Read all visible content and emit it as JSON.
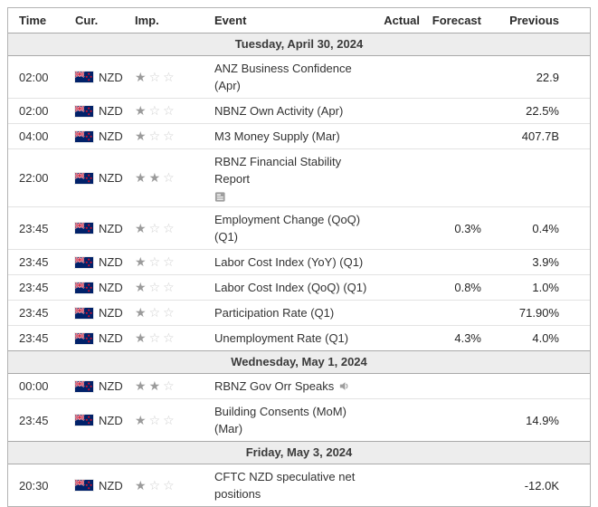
{
  "header": {
    "time": "Time",
    "cur": "Cur.",
    "imp": "Imp.",
    "event": "Event",
    "actual": "Actual",
    "forecast": "Forecast",
    "previous": "Previous"
  },
  "colors": {
    "filled_star": "#9b9b9b",
    "empty_star": "#cfcfcf",
    "date_row_bg": "#ededed",
    "row_border": "#e3e3e3",
    "date_row_border": "#a9a9a9",
    "flag_blue": "#012169",
    "flag_red": "#c8102e",
    "text": "#333333"
  },
  "icons": {
    "flag": "new-zealand-flag-icon",
    "report": "report-icon",
    "speaker": "speaker-icon",
    "filled_star": "star-filled-icon",
    "empty_star": "star-outline-icon"
  },
  "importance_max": 3,
  "groups": [
    {
      "date": "Tuesday, April 30, 2024",
      "rows": [
        {
          "time": "02:00",
          "currency": "NZD",
          "importance": 1,
          "event": "ANZ Business Confidence (Apr)",
          "actual": "",
          "forecast": "",
          "previous": "22.9"
        },
        {
          "time": "02:00",
          "currency": "NZD",
          "importance": 1,
          "event": "NBNZ Own Activity (Apr)",
          "actual": "",
          "forecast": "",
          "previous": "22.5%"
        },
        {
          "time": "04:00",
          "currency": "NZD",
          "importance": 1,
          "event": "M3 Money Supply (Mar)",
          "actual": "",
          "forecast": "",
          "previous": "407.7B"
        },
        {
          "time": "22:00",
          "currency": "NZD",
          "importance": 2,
          "event": "RBNZ Financial Stability Report",
          "event_icon": "report-icon",
          "actual": "",
          "forecast": "",
          "previous": ""
        },
        {
          "time": "23:45",
          "currency": "NZD",
          "importance": 1,
          "event": "Employment Change (QoQ) (Q1)",
          "actual": "",
          "forecast": "0.3%",
          "previous": "0.4%"
        },
        {
          "time": "23:45",
          "currency": "NZD",
          "importance": 1,
          "event": "Labor Cost Index (YoY) (Q1)",
          "actual": "",
          "forecast": "",
          "previous": "3.9%"
        },
        {
          "time": "23:45",
          "currency": "NZD",
          "importance": 1,
          "event": "Labor Cost Index (QoQ) (Q1)",
          "actual": "",
          "forecast": "0.8%",
          "previous": "1.0%"
        },
        {
          "time": "23:45",
          "currency": "NZD",
          "importance": 1,
          "event": "Participation Rate (Q1)",
          "actual": "",
          "forecast": "",
          "previous": "71.90%"
        },
        {
          "time": "23:45",
          "currency": "NZD",
          "importance": 1,
          "event": "Unemployment Rate (Q1)",
          "actual": "",
          "forecast": "4.3%",
          "previous": "4.0%"
        }
      ]
    },
    {
      "date": "Wednesday, May 1, 2024",
      "rows": [
        {
          "time": "00:00",
          "currency": "NZD",
          "importance": 2,
          "event": "RBNZ Gov Orr Speaks",
          "event_icon": "speaker-icon",
          "actual": "",
          "forecast": "",
          "previous": ""
        },
        {
          "time": "23:45",
          "currency": "NZD",
          "importance": 1,
          "event": "Building Consents (MoM) (Mar)",
          "actual": "",
          "forecast": "",
          "previous": "14.9%"
        }
      ]
    },
    {
      "date": "Friday, May 3, 2024",
      "rows": [
        {
          "time": "20:30",
          "currency": "NZD",
          "importance": 1,
          "event": "CFTC NZD speculative net positions",
          "actual": "",
          "forecast": "",
          "previous": "-12.0K"
        }
      ]
    }
  ]
}
